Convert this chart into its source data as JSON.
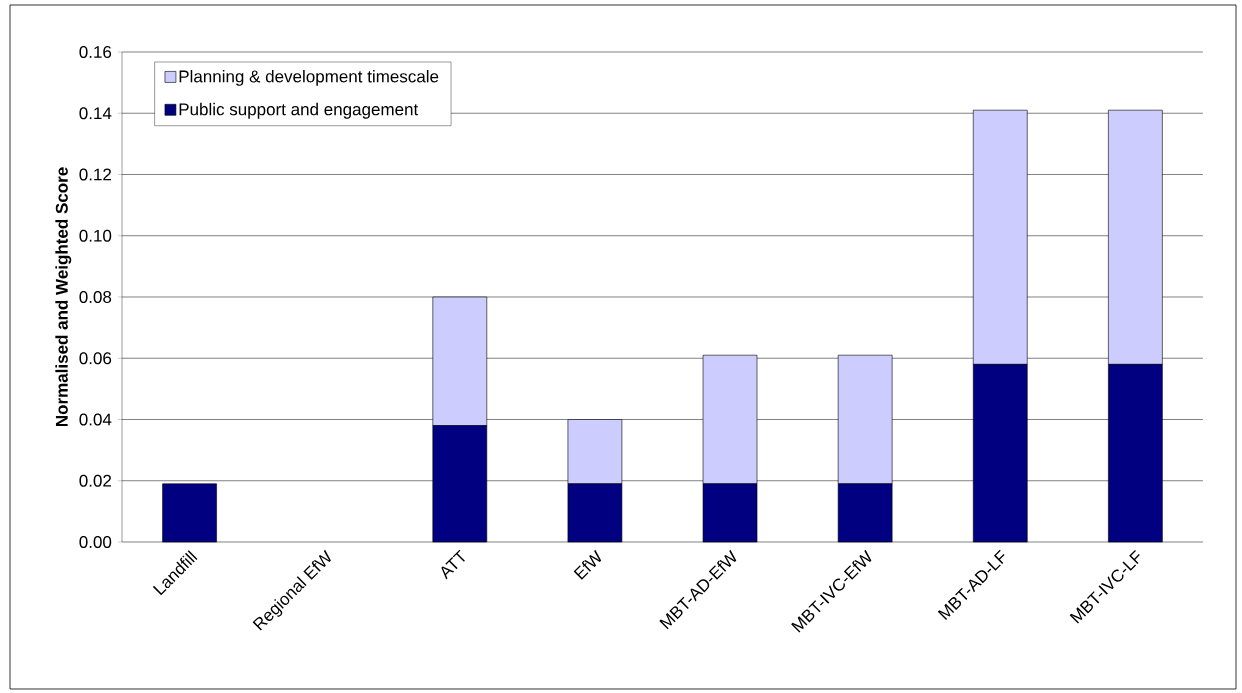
{
  "chart_data": {
    "type": "bar",
    "stacked": true,
    "ylabel": "Normalised and Weighted Score",
    "categories": [
      "Landfill",
      "Regional EfW",
      "ATT",
      "EfW",
      "MBT-AD-EfW",
      "MBT-IVC-EfW",
      "MBT-AD-LF",
      "MBT-IVC-LF"
    ],
    "series": [
      {
        "name": "Public support and engagement",
        "color": "#000080",
        "values": [
          0.019,
          0,
          0.038,
          0.019,
          0.019,
          0.019,
          0.058,
          0.058
        ]
      },
      {
        "name": "Planning & development timescale",
        "color": "#ccccff",
        "values": [
          0,
          0,
          0.042,
          0.021,
          0.042,
          0.042,
          0.083,
          0.083
        ]
      }
    ],
    "ylim": [
      0,
      0.16
    ],
    "yticks": [
      {
        "value": 0,
        "label": "0.00"
      },
      {
        "value": 0.02,
        "label": "0.02"
      },
      {
        "value": 0.04,
        "label": "0.04"
      },
      {
        "value": 0.06,
        "label": "0.06"
      },
      {
        "value": 0.08,
        "label": "0.08"
      },
      {
        "value": 0.1,
        "label": "0.10"
      },
      {
        "value": 0.12,
        "label": "0.12"
      },
      {
        "value": 0.14,
        "label": "0.14"
      },
      {
        "value": 0.16,
        "label": "0.16"
      }
    ],
    "grid": "y",
    "legend": "top left"
  }
}
